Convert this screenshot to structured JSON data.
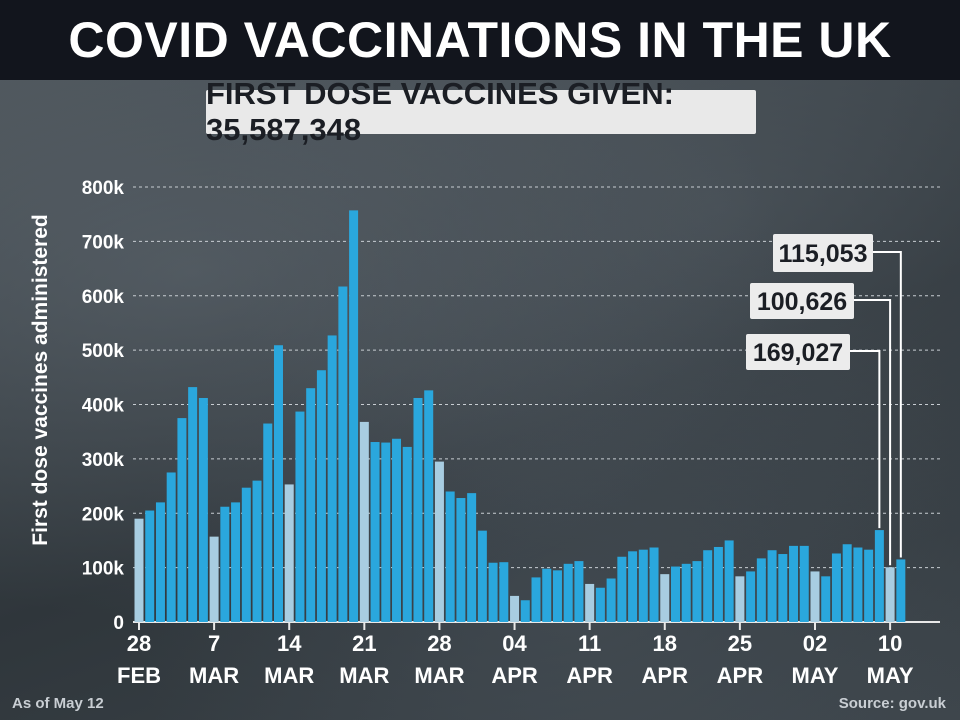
{
  "header": {
    "title": "COVID VACCINATIONS IN THE UK",
    "subtitle": "FIRST DOSE VACCINES GIVEN: 35,587,348"
  },
  "footer": {
    "as_of": "As of May 12",
    "source": "Source: gov.uk"
  },
  "colors": {
    "bar": "#2aa7dd",
    "bar_weekend": "#a8cde1",
    "axis_text": "#ffffff",
    "callout_bg": "#ececec",
    "callout_text": "#1b1e24"
  },
  "chart_data": {
    "type": "bar",
    "ylabel": "First dose vaccines administered",
    "ylim": [
      0,
      800000
    ],
    "yticks": [
      {
        "value": 0,
        "label": "0"
      },
      {
        "value": 100000,
        "label": "100k"
      },
      {
        "value": 200000,
        "label": "200k"
      },
      {
        "value": 300000,
        "label": "300k"
      },
      {
        "value": 400000,
        "label": "400k"
      },
      {
        "value": 500000,
        "label": "500k"
      },
      {
        "value": 600000,
        "label": "600k"
      },
      {
        "value": 700000,
        "label": "700k"
      },
      {
        "value": 800000,
        "label": "800k"
      }
    ],
    "grid": true,
    "x_ticks": [
      {
        "index": 0,
        "day": "28",
        "month": "FEB"
      },
      {
        "index": 7,
        "day": "7",
        "month": "MAR"
      },
      {
        "index": 14,
        "day": "14",
        "month": "MAR"
      },
      {
        "index": 21,
        "day": "21",
        "month": "MAR"
      },
      {
        "index": 28,
        "day": "28",
        "month": "MAR"
      },
      {
        "index": 35,
        "day": "04",
        "month": "APR"
      },
      {
        "index": 42,
        "day": "11",
        "month": "APR"
      },
      {
        "index": 49,
        "day": "18",
        "month": "APR"
      },
      {
        "index": 56,
        "day": "25",
        "month": "APR"
      },
      {
        "index": 63,
        "day": "02",
        "month": "MAY"
      },
      {
        "index": 70,
        "day": "10",
        "month": "MAY"
      }
    ],
    "values": [
      190000,
      205000,
      220000,
      275000,
      375000,
      432000,
      412000,
      157000,
      212000,
      220000,
      247000,
      260000,
      365000,
      509000,
      253000,
      387000,
      430000,
      463000,
      527000,
      617000,
      757000,
      368000,
      331000,
      330000,
      337000,
      322000,
      412000,
      426000,
      295000,
      240000,
      228000,
      237000,
      168000,
      109000,
      110000,
      48000,
      40000,
      82000,
      98000,
      95000,
      107000,
      112000,
      70000,
      63000,
      80000,
      120000,
      130000,
      133000,
      137000,
      88000,
      102000,
      107000,
      112000,
      132000,
      138000,
      150000,
      84000,
      93000,
      117000,
      132000,
      125000,
      140000,
      140000,
      93000,
      84000,
      126000,
      143000,
      137000,
      133000,
      169027,
      100626,
      115053
    ],
    "weekend_indices": [
      0,
      7,
      14,
      21,
      28,
      35,
      42,
      49,
      56,
      63,
      70
    ],
    "callouts": [
      {
        "index": 71,
        "label": "115,053"
      },
      {
        "index": 70,
        "label": "100,626"
      },
      {
        "index": 69,
        "label": "169,027"
      }
    ]
  }
}
